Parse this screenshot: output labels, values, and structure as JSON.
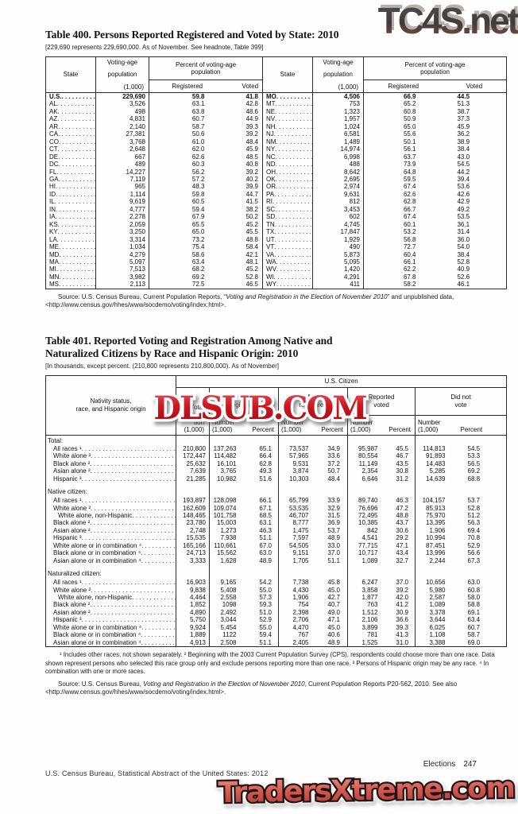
{
  "watermarks": {
    "top": "TC4S.net",
    "middle": "DLSUB.COM",
    "bottom": "TradersXtreme.com",
    "colors": {
      "red": "#c41722",
      "gray": "#45403d",
      "salmon": "#d4574e"
    }
  },
  "table400": {
    "title": "Table 400. Persons Reported Registered and Voted by State: 2010",
    "note": "[229,690 represents 229,690,000. As of November. See headnote, Table 399]",
    "headers": {
      "state": "State",
      "pop_lines": [
        "Voting-age",
        "population",
        "(1,000)"
      ],
      "pct_lines": [
        "Percent of voting-age",
        "population"
      ],
      "registered": "Registered",
      "voted": "Voted"
    },
    "rows": [
      [
        "U.S.",
        "229,690",
        "59.8",
        "41.8",
        "MO",
        "4,506",
        "66.9",
        "44.5"
      ],
      [
        "AL",
        "3,526",
        "63.1",
        "42.8",
        "MT",
        "753",
        "65.2",
        "51.3"
      ],
      [
        "AK",
        "498",
        "63.8",
        "48.6",
        "NE",
        "1,323",
        "60.8",
        "38.7"
      ],
      [
        "AZ",
        "4,831",
        "60.7",
        "44.9",
        "NV",
        "1,957",
        "50.9",
        "37.3"
      ],
      [
        "AR",
        "2,140",
        "58.7",
        "39.3",
        "NH",
        "1,024",
        "65.0",
        "45.9"
      ],
      [
        "CA",
        "27,381",
        "50.6",
        "39.2",
        "NJ",
        "6,581",
        "55.6",
        "36.2"
      ],
      [
        "CO",
        "3,768",
        "61.0",
        "48.4",
        "NM",
        "1,489",
        "50.1",
        "38.9"
      ],
      [
        "CT",
        "2,648",
        "62.0",
        "45.9",
        "NY",
        "14,974",
        "56.1",
        "38.4"
      ],
      [
        "DE",
        "667",
        "62.6",
        "48.5",
        "NC",
        "6,998",
        "63.7",
        "43.0"
      ],
      [
        "DC",
        "489",
        "60.3",
        "40.8",
        "ND",
        "488",
        "73.9",
        "54.5"
      ],
      [
        "FL",
        "14,227",
        "56.2",
        "39.2",
        "OH",
        "8,642",
        "64.8",
        "44.2"
      ],
      [
        "GA",
        "7,119",
        "57.2",
        "40.2",
        "OK",
        "2,695",
        "59.5",
        "39.4"
      ],
      [
        "HI",
        "965",
        "48.3",
        "39.9",
        "OR",
        "2,974",
        "67.4",
        "53.6"
      ],
      [
        "ID",
        "1,114",
        "59.8",
        "44.7",
        "PA",
        "9,631",
        "62.6",
        "42.6"
      ],
      [
        "IL",
        "9,619",
        "60.5",
        "41.5",
        "RI",
        "812",
        "62.8",
        "42.9"
      ],
      [
        "IN",
        "4,777",
        "59.4",
        "38.2",
        "SC",
        "3,453",
        "66.7",
        "49.2"
      ],
      [
        "IA",
        "2,278",
        "67.9",
        "50.2",
        "SD",
        "602",
        "67.4",
        "53.5"
      ],
      [
        "KS",
        "2,059",
        "65.5",
        "45.2",
        "TN",
        "4,745",
        "60.1",
        "36.1"
      ],
      [
        "KY",
        "3,250",
        "65.0",
        "45.5",
        "TX",
        "17,847",
        "53.2",
        "31.4"
      ],
      [
        "LA",
        "3,314",
        "73.2",
        "48.8",
        "UT",
        "1,929",
        "56.8",
        "36.0"
      ],
      [
        "ME",
        "1,034",
        "75.4",
        "58.4",
        "VT",
        "490",
        "72.7",
        "54.0"
      ],
      [
        "MD",
        "4,279",
        "58.6",
        "42.1",
        "VA",
        "5,873",
        "60.4",
        "38.4"
      ],
      [
        "MA",
        "5,097",
        "63.4",
        "48.1",
        "WA",
        "5,095",
        "66.1",
        "52.8"
      ],
      [
        "MI",
        "7,513",
        "68.2",
        "45.2",
        "WV",
        "1,420",
        "62.2",
        "40.9"
      ],
      [
        "MN",
        "3,982",
        "69.2",
        "52.8",
        "WI",
        "4,291",
        "67.8",
        "52.6"
      ],
      [
        "MS",
        "2,113",
        "72.5",
        "46.5",
        "WY",
        "411",
        "58.2",
        "46.1"
      ]
    ],
    "source": {
      "pre": "Source: U.S. Census Bureau, Current Population Reports, “",
      "italic": "Voting and Registration in the Election of November 2010",
      "post": "” and unpublished data, <http://www.census.gov/hhes/www/socdemo/voting/index.html>."
    }
  },
  "table401": {
    "title_lines": [
      "Table 401. Reported Voting and Registration Among Native and",
      "Naturalized Citizens by Race and Hispanic Origin: 2010"
    ],
    "note": "[In thousands, except percent. (210,800 represents 210,800,000). As of November]",
    "headers": {
      "stub_lines": [
        "Nativity status,",
        "race, and Hispanic origin"
      ],
      "citizen": "U.S. Citizen",
      "total_lines": [
        "Total",
        "popula-",
        "tion",
        "(1,000)"
      ],
      "groups": [
        [
          "Reported",
          "registered"
        ],
        [
          "Not",
          "registered"
        ],
        [
          "Reported",
          "voted"
        ],
        [
          "Did not",
          "vote"
        ]
      ],
      "num_lines": [
        "Number",
        "(1,000)"
      ],
      "percent": "Percent"
    },
    "sections": [
      {
        "label": "Total:",
        "rows": [
          {
            "label": "All races ¹",
            "indent": 1,
            "v": [
              "210,800",
              "137,263",
              "65.1",
              "73,537",
              "34.9",
              "95,987",
              "45.5",
              "114,813",
              "54.5"
            ]
          },
          {
            "label": "White alone ²",
            "indent": 1,
            "v": [
              "172,447",
              "114,482",
              "66.4",
              "57,965",
              "33.6",
              "80,554",
              "46.7",
              "91,893",
              "53.3"
            ]
          },
          {
            "label": "Black alone ²",
            "indent": 1,
            "v": [
              "25,632",
              "16,101",
              "62.8",
              "9,531",
              "37.2",
              "11,149",
              "43.5",
              "14,483",
              "56.5"
            ]
          },
          {
            "label": "Asian alone ²",
            "indent": 1,
            "v": [
              "7,639",
              "3,765",
              "49.3",
              "3,874",
              "50.7",
              "2,354",
              "30.8",
              "5,285",
              "69.2"
            ]
          },
          {
            "label": "Hispanic ³",
            "indent": 1,
            "v": [
              "21,285",
              "10,982",
              "51.6",
              "10,303",
              "48.4",
              "6,646",
              "31.2",
              "14,639",
              "68.8"
            ]
          }
        ]
      },
      {
        "label": "Native citizen:",
        "rows": [
          {
            "label": "All races ¹",
            "indent": 1,
            "v": [
              "193,897",
              "128,098",
              "66.1",
              "65,799",
              "33.9",
              "89,740",
              "46.3",
              "104,157",
              "53.7"
            ]
          },
          {
            "label": "White alone ²",
            "indent": 1,
            "v": [
              "162,609",
              "109,074",
              "67.1",
              "53,535",
              "32.9",
              "76,696",
              "47.2",
              "85,913",
              "52.8"
            ]
          },
          {
            "label": "White alone, non-Hispanic",
            "indent": 2,
            "v": [
              "148,465",
              "101,758",
              "68.5",
              "46,707",
              "31.5",
              "72,495",
              "48.8",
              "75,970",
              "51.2"
            ]
          },
          {
            "label": "Black alone ²",
            "indent": 1,
            "v": [
              "23,780",
              "15,003",
              "63.1",
              "8,777",
              "36.9",
              "10,385",
              "43.7",
              "13,395",
              "56.3"
            ]
          },
          {
            "label": "Asian alone ²",
            "indent": 1,
            "v": [
              "2,748",
              "1,273",
              "46.3",
              "1,475",
              "53.7",
              "842",
              "30.6",
              "1,906",
              "69.4"
            ]
          },
          {
            "label": "Hispanic ³",
            "indent": 1,
            "v": [
              "15,535",
              "7,938",
              "51.1",
              "7,597",
              "48.9",
              "4,541",
              "29.2",
              "10,994",
              "70.8"
            ]
          },
          {
            "label": "White alone or in combination ⁴",
            "indent": 1,
            "v": [
              "165,166",
              "110,661",
              "67.0",
              "54,505",
              "33.0",
              "77,715",
              "47.1",
              "87,451",
              "52.9"
            ]
          },
          {
            "label": "Black alone or in combination ⁴",
            "indent": 1,
            "v": [
              "24,713",
              "15,562",
              "63.0",
              "9,151",
              "37.0",
              "10,717",
              "43.4",
              "13,996",
              "56.6"
            ]
          },
          {
            "label": "Asian alone or in combination ⁴",
            "indent": 1,
            "v": [
              "3,333",
              "1,628",
              "48.9",
              "1,705",
              "51.1",
              "1,089",
              "32.7",
              "2,244",
              "67.3"
            ]
          }
        ]
      },
      {
        "label": "Naturalized citizen:",
        "rows": [
          {
            "label": "All races ¹",
            "indent": 1,
            "v": [
              "16,903",
              "9,165",
              "54.2",
              "7,738",
              "45.8",
              "6,247",
              "37.0",
              "10,656",
              "63.0"
            ]
          },
          {
            "label": "White alone ²",
            "indent": 1,
            "v": [
              "9,838",
              "5,408",
              "55.0",
              "4,430",
              "45.0",
              "3,858",
              "39.2",
              "5,980",
              "60.8"
            ]
          },
          {
            "label": "White alone, non-Hispanic",
            "indent": 2,
            "v": [
              "4,464",
              "2,558",
              "57.3",
              "1,906",
              "42.7",
              "1,877",
              "42.0",
              "2,587",
              "58.0"
            ]
          },
          {
            "label": "Black alone ²",
            "indent": 1,
            "v": [
              "1,852",
              "1098",
              "59.3",
              "754",
              "40.7",
              "763",
              "41.2",
              "1,089",
              "58.8"
            ]
          },
          {
            "label": "Asian alone ²",
            "indent": 1,
            "v": [
              "4,890",
              "2,492",
              "51.0",
              "2,398",
              "49.0",
              "1,512",
              "30.9",
              "3,378",
              "69.1"
            ]
          },
          {
            "label": "Hispanic ³",
            "indent": 1,
            "v": [
              "5,750",
              "3,044",
              "52.9",
              "2,706",
              "47.1",
              "2,106",
              "36.6",
              "3,644",
              "63.4"
            ]
          },
          {
            "label": "White alone or in combination ⁴",
            "indent": 1,
            "v": [
              "9,924",
              "5,454",
              "55.0",
              "4,470",
              "45.0",
              "3,899",
              "39.3",
              "6,025",
              "60.7"
            ]
          },
          {
            "label": "Black alone or in combination ⁴",
            "indent": 1,
            "v": [
              "1,889",
              "1122",
              "59.4",
              "767",
              "40.6",
              "781",
              "41.3",
              "1,108",
              "58.7"
            ]
          },
          {
            "label": "Asian alone or in combination ⁴",
            "indent": 1,
            "v": [
              "4,913",
              "2,508",
              "51.1",
              "2,405",
              "48.9",
              "1,525",
              "31.0",
              "3,388",
              "69.0"
            ]
          }
        ]
      }
    ],
    "footnotes": "¹ Includes other races, not shown separately. ² Beginning with the 2003 Current Population Survey (CPS), respondents could choose more than one race. Data shown represent persons who selected this race group only and exclude persons reporting more than one race. ³ Persons of Hispanic origin may be any race. ⁴ In combination with one or more races.",
    "source": {
      "pre": "Source: U.S. Census Bureau, ",
      "italic": "Voting and Registration in the Election of November 2010",
      "post": ", Current Population Reports P20-562, 2010. See also <http://www.census.gov/hhes/www/socdemo/voting/index.html>."
    }
  },
  "footer": {
    "section_label": "Elections",
    "page_number": "247",
    "credit": "U.S. Census Bureau, Statistical Abstract of the United States: 2012"
  }
}
